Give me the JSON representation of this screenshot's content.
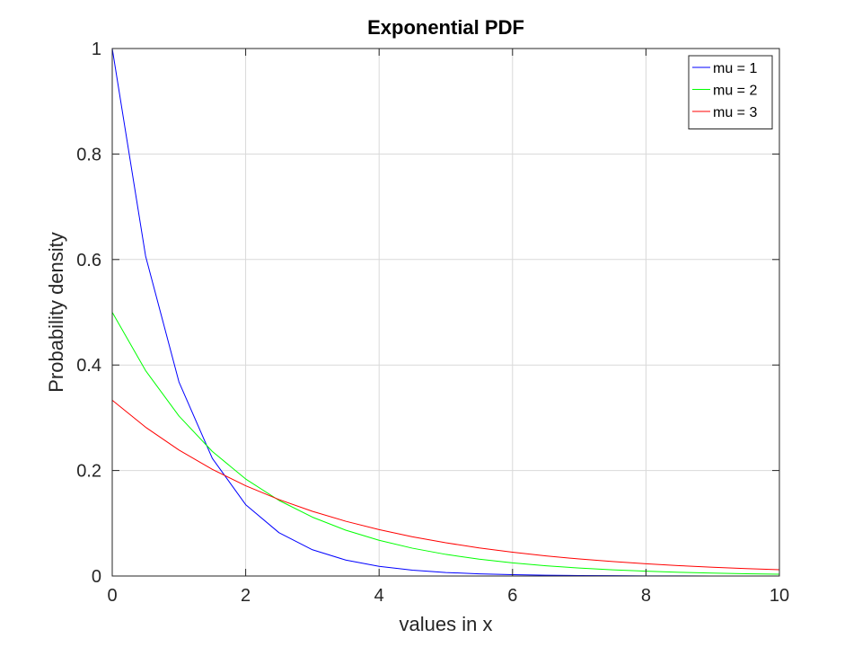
{
  "chart_data": {
    "type": "line",
    "title": "Exponential PDF",
    "xlabel": "values in x",
    "ylabel": "Probability density",
    "xlim": [
      0,
      10
    ],
    "ylim": [
      0,
      1
    ],
    "xticks": [
      0,
      2,
      4,
      6,
      8,
      10
    ],
    "yticks": [
      0,
      0.2,
      0.4,
      0.6,
      0.8,
      1
    ],
    "xtick_labels": [
      "0",
      "2",
      "4",
      "6",
      "8",
      "10"
    ],
    "ytick_labels": [
      "0",
      "0.2",
      "0.4",
      "0.6",
      "0.8",
      "1"
    ],
    "grid": true,
    "legend_position": "top-right",
    "x": [
      0,
      0.5,
      1,
      1.5,
      2,
      2.5,
      3,
      3.5,
      4,
      4.5,
      5,
      5.5,
      6,
      6.5,
      7,
      7.5,
      8,
      8.5,
      9,
      9.5,
      10
    ],
    "series": [
      {
        "name": "mu = 1",
        "color": "#0000ff",
        "values": [
          1.0,
          0.6065,
          0.3679,
          0.2231,
          0.1353,
          0.0821,
          0.0498,
          0.0302,
          0.0183,
          0.0111,
          0.0067,
          0.0041,
          0.0025,
          0.0015,
          0.0009,
          0.0006,
          0.0003,
          0.0002,
          0.0001,
          0.0001,
          0.0
        ]
      },
      {
        "name": "mu = 2",
        "color": "#00ff00",
        "values": [
          0.5,
          0.3894,
          0.3033,
          0.2362,
          0.1839,
          0.1433,
          0.1116,
          0.0869,
          0.0677,
          0.0527,
          0.041,
          0.032,
          0.0249,
          0.0194,
          0.0151,
          0.0118,
          0.0092,
          0.0071,
          0.0056,
          0.0043,
          0.0034
        ]
      },
      {
        "name": "mu = 3",
        "color": "#ff0000",
        "values": [
          0.3333,
          0.2821,
          0.2388,
          0.2022,
          0.1711,
          0.1449,
          0.1226,
          0.1038,
          0.0879,
          0.0744,
          0.063,
          0.0533,
          0.0451,
          0.0382,
          0.0323,
          0.0274,
          0.0232,
          0.0196,
          0.0166,
          0.0141,
          0.0119
        ]
      }
    ]
  }
}
